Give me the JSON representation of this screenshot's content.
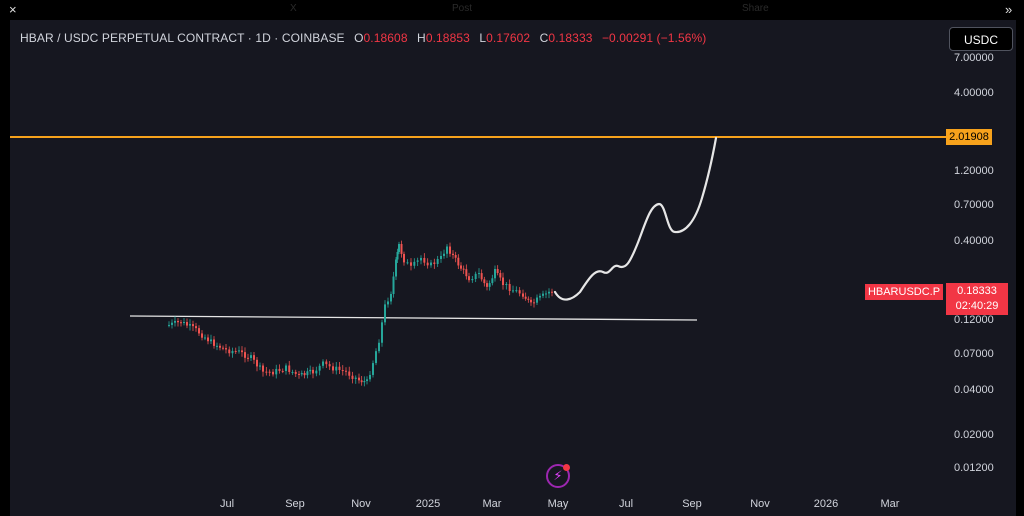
{
  "topbar": {
    "close_glyph": "×",
    "expand_glyph": "»",
    "ghost_items": [
      "X",
      "Post",
      "Share"
    ]
  },
  "header": {
    "symbol_text": "HBAR / USDC PERPETUAL CONTRACT · 1D · COINBASE",
    "open_label": "O",
    "open_value": "0.18608",
    "high_label": "H",
    "high_value": "0.18853",
    "low_label": "L",
    "low_value": "0.17602",
    "close_label": "C",
    "close_value": "0.18333",
    "change_value": "−0.00291 (−1.56%)"
  },
  "currency_button": "USDC",
  "price_axis": {
    "ticks": [
      "7.00000",
      "4.00000",
      "1.20000",
      "0.70000",
      "0.40000",
      "0.12000",
      "0.07000",
      "0.04000",
      "0.02000",
      "0.01200"
    ]
  },
  "time_axis": {
    "ticks": [
      "Jul",
      "Sep",
      "Nov",
      "2025",
      "Mar",
      "May",
      "Jul",
      "Sep",
      "Nov",
      "2026",
      "Mar"
    ]
  },
  "level_line": {
    "value": "2.01908",
    "color": "#f7a21c"
  },
  "current_price": {
    "symbol": "HBARUSDC.P",
    "price": "0.18333",
    "countdown": "02:40:29",
    "color": "#f23645"
  },
  "colors": {
    "up": "#26a69a",
    "down": "#ef5350",
    "background": "#161720",
    "drawing": "#e6e6e6"
  },
  "icons": {
    "flash": "flash-icon"
  }
}
